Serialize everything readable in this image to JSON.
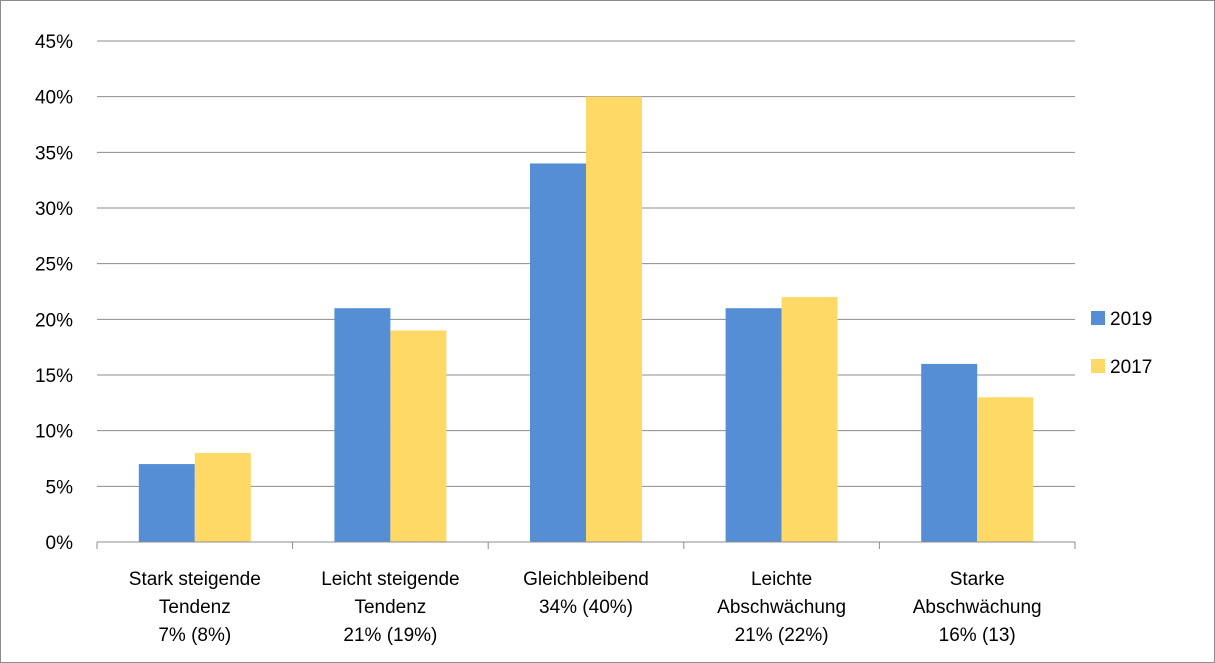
{
  "chart_data": {
    "type": "bar",
    "title": "",
    "xlabel": "",
    "ylabel": "",
    "ylim": [
      0,
      45
    ],
    "y_tick_step": 5,
    "y_tick_suffix": "%",
    "grid": true,
    "legend_placement": "right",
    "categories": [
      [
        "Stark steigende",
        "Tendenz",
        "7% (8%)"
      ],
      [
        "Leicht steigende",
        "Tendenz",
        "21% (19%)"
      ],
      [
        "Gleichbleibend",
        "34% (40%)"
      ],
      [
        "Leichte",
        "Abschwächung",
        "21% (22%)"
      ],
      [
        "Starke",
        "Abschwächung",
        "16% (13)"
      ]
    ],
    "series": [
      {
        "name": "2019",
        "color": "#558ed5",
        "values": [
          7,
          21,
          34,
          21,
          16
        ]
      },
      {
        "name": "2017",
        "color": "#ffd966",
        "values": [
          8,
          19,
          40,
          22,
          13
        ]
      }
    ]
  }
}
